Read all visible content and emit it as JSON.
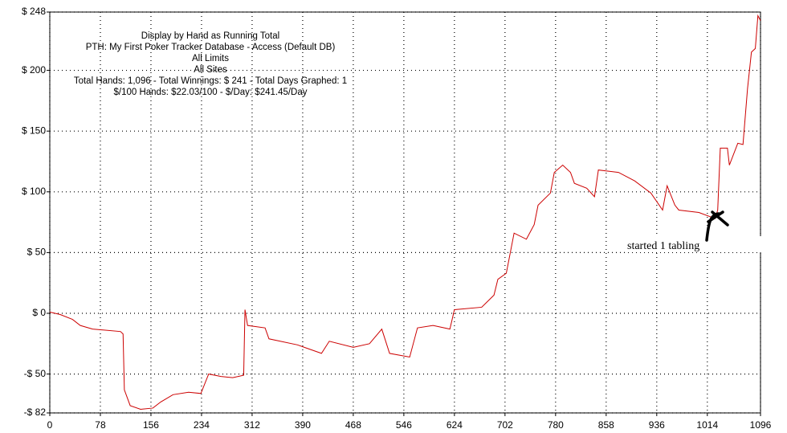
{
  "chart_data": {
    "type": "line",
    "title_lines": [
      "Display by Hand as Running Total",
      "PTH: My First Poker Tracker Database - Access (Default DB)",
      "All Limits",
      "All Sites",
      "Total Hands: 1,096 - Total Winnings: $ 241 - Total Days Graphed: 1",
      "$/100 Hands: $22.03/100 - $/Day: $241.45/Day"
    ],
    "annotation": "started 1 tabling",
    "x": [
      0,
      16,
      35,
      47,
      66,
      109,
      113,
      115,
      124,
      140,
      159,
      171,
      190,
      214,
      233,
      245,
      264,
      282,
      299,
      301,
      305,
      332,
      338,
      382,
      419,
      431,
      468,
      493,
      512,
      524,
      555,
      567,
      591,
      617,
      624,
      666,
      685,
      691,
      704,
      716,
      735,
      747,
      753,
      772,
      778,
      791,
      803,
      809,
      828,
      840,
      846,
      877,
      902,
      927,
      945,
      952,
      964,
      970,
      1001,
      1026,
      1030,
      1034,
      1045,
      1048,
      1061,
      1069,
      1076,
      1082,
      1088,
      1092,
      1096
    ],
    "series": [
      {
        "name": "Running Total",
        "color": "#cc0000",
        "values": [
          1,
          -1,
          -5,
          -10,
          -13,
          -15,
          -17,
          -63,
          -76,
          -79,
          -78,
          -73,
          -67,
          -65,
          -66,
          -50,
          -52,
          -53,
          -51,
          3,
          -10,
          -12,
          -21,
          -26,
          -33,
          -23,
          -28,
          -25,
          -13,
          -33,
          -36,
          -12,
          -10,
          -13,
          3,
          5,
          15,
          28,
          33,
          66,
          61,
          73,
          89,
          99,
          116,
          122,
          116,
          107,
          103,
          96,
          118,
          116,
          109,
          99,
          85,
          105,
          89,
          85,
          83,
          78,
          85,
          136,
          136,
          122,
          140,
          139,
          185,
          215,
          218,
          245,
          241
        ]
      }
    ],
    "xlim": [
      0,
      1096
    ],
    "xticks": [
      0,
      78,
      156,
      234,
      312,
      390,
      468,
      546,
      624,
      702,
      780,
      858,
      936,
      1014,
      1096
    ],
    "ylim": [
      -82,
      248
    ],
    "yticks": [
      {
        "value": -82,
        "label": "-$ 82"
      },
      {
        "value": -50,
        "label": "-$ 50"
      },
      {
        "value": 0,
        "label": "$ 0"
      },
      {
        "value": 50,
        "label": "$ 50"
      },
      {
        "value": 100,
        "label": "$ 100"
      },
      {
        "value": 150,
        "label": "$ 150"
      },
      {
        "value": 200,
        "label": "$ 200"
      },
      {
        "value": 248,
        "label": "$ 248"
      }
    ],
    "grid": true
  }
}
